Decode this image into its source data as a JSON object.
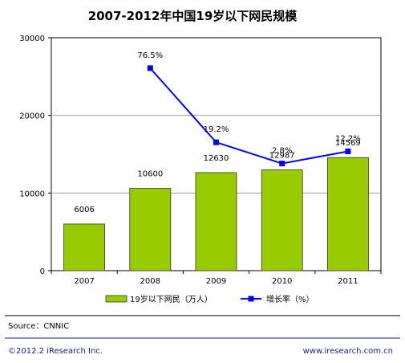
{
  "chart_data": {
    "type": "bar",
    "title": "2007-2012年中国19岁以下网民规模",
    "categories": [
      "2007",
      "2008",
      "2009",
      "2010",
      "2011"
    ],
    "series": [
      {
        "name": "19岁以下网民（万人）",
        "type": "bar",
        "axis": "left",
        "values": [
          6006,
          10600,
          12630,
          12987,
          14569
        ],
        "labels": [
          "6006",
          "10600",
          "12630",
          "12987",
          "14569"
        ]
      },
      {
        "name": "增长率（%）",
        "type": "line",
        "axis": "right",
        "values": [
          null,
          76.5,
          19.2,
          2.8,
          12.2
        ],
        "labels": [
          "",
          "76.5%",
          "19.2%",
          "2.8%",
          "12.2%"
        ]
      }
    ],
    "yticks": [
      "0",
      "10000",
      "20000",
      "30000"
    ],
    "ylim": [
      0,
      30000
    ],
    "line_ylim": [
      -80,
      100
    ],
    "grid": true,
    "legend_position": "bottom",
    "colors": {
      "bar": "#99cc00",
      "bar_edge": "#333333",
      "line": "#0000ff"
    }
  },
  "source": "Source：CNNIC",
  "footer": {
    "left": "©2012.2 iResearch Inc.",
    "right": "www.iresearch.com.cn"
  }
}
